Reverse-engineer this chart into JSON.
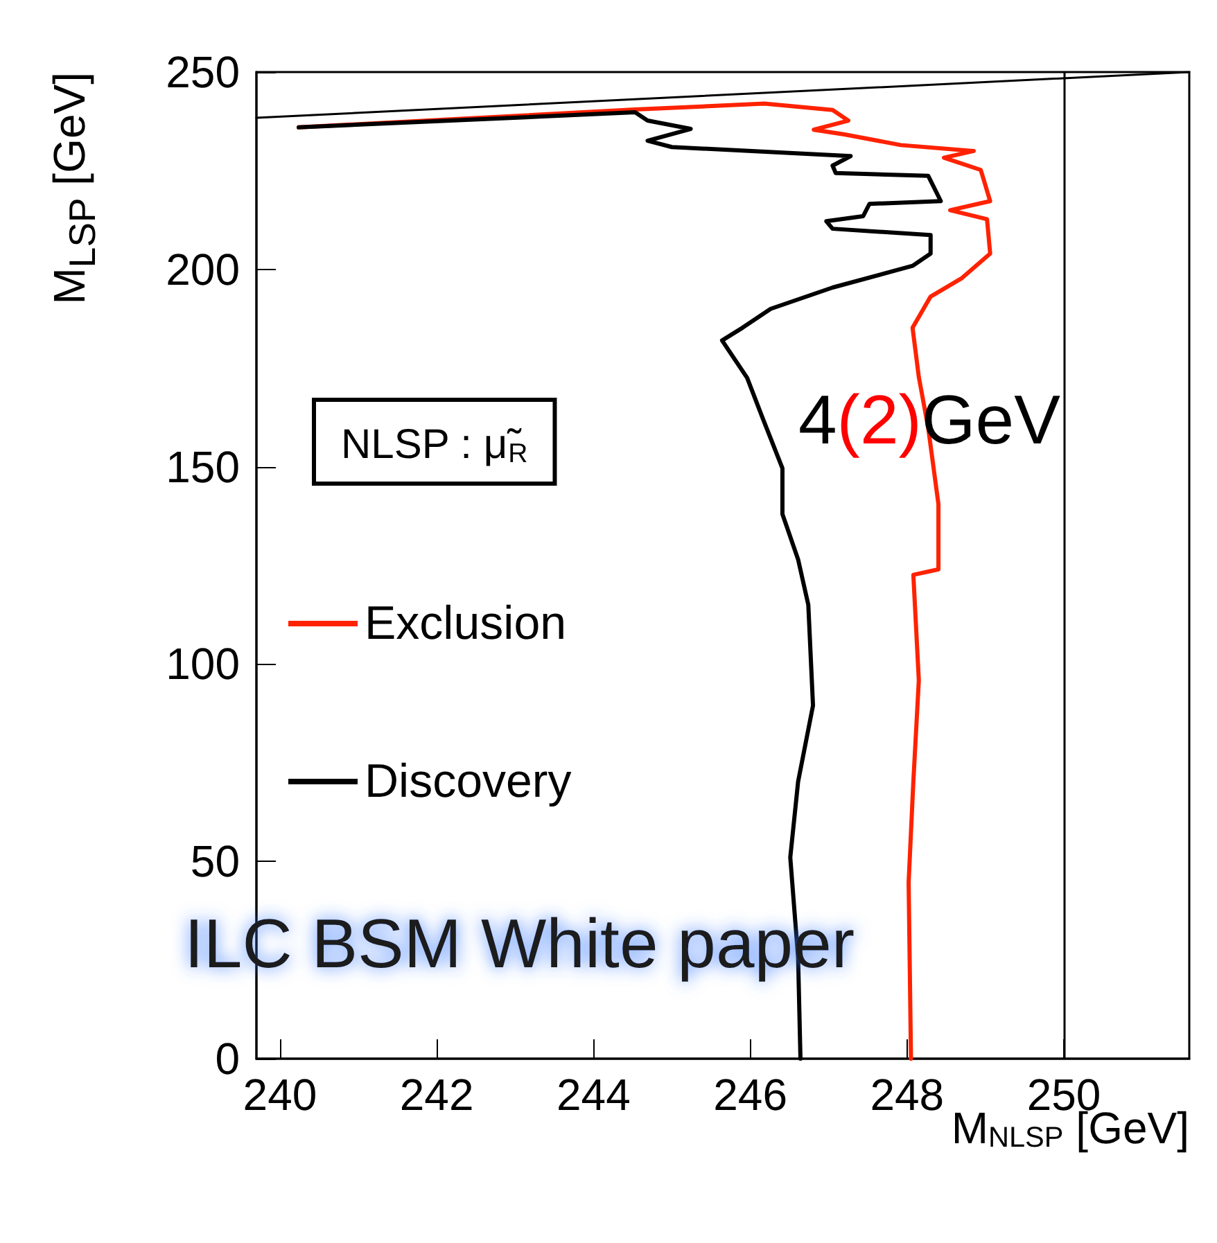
{
  "chart_data": {
    "type": "line",
    "xlabel": "M$_{NLSP}$ [GeV]",
    "ylabel": "M$_{LSP}$ [GeV]",
    "xlim": [
      239.7,
      251.6
    ],
    "ylim": [
      0,
      250
    ],
    "xticks": [
      240,
      242,
      244,
      246,
      248,
      250
    ],
    "yticks": [
      0,
      50,
      100,
      150,
      200,
      250
    ],
    "grid": false,
    "legend": "left",
    "marker": "none",
    "line_style": "solid",
    "annotations": [
      "NLSP : μ̃$_{R}$",
      "4(2)GeV",
      "ILC BSM White paper"
    ],
    "ref_lines": [
      {
        "axis": "x",
        "value": 250,
        "color": "#000000"
      }
    ],
    "series": [
      {
        "type": "line",
        "color": "#000000",
        "x": [
          239.7,
          251.6
        ],
        "values": [
          238.4,
          250
        ]
      },
      {
        "name": "Exclusion",
        "color": "#ff2200",
        "x": [
          240.24,
          244.53,
          246.18,
          247.05,
          247.25,
          246.81,
          247.2,
          247.92,
          248.85,
          248.47,
          248.94,
          249.06,
          248.55,
          249.02,
          249.06,
          248.7,
          248.3,
          248.07,
          248.15,
          248.27,
          248.4,
          248.4,
          248.08,
          248.15,
          248.08,
          248.02,
          248.05
        ],
        "values": [
          236,
          240.5,
          242,
          240.4,
          237.7,
          235.4,
          234.2,
          231.5,
          230,
          228.3,
          225.2,
          217.3,
          215,
          212.7,
          204,
          197.8,
          193.1,
          185.2,
          172.7,
          159.8,
          140.5,
          124,
          122.6,
          95.9,
          70.2,
          44.7,
          0
        ]
      },
      {
        "name": "Discovery",
        "color": "#000000",
        "x": [
          240.24,
          244.53,
          244.69,
          245.24,
          244.69,
          245.0,
          247.28,
          247.05,
          247.09,
          248.27,
          248.43,
          247.52,
          247.44,
          246.97,
          247.05,
          248.3,
          248.3,
          248.07,
          247.05,
          246.26,
          245.9,
          245.64,
          245.96,
          246.16,
          246.41,
          246.41,
          246.61,
          246.74,
          246.8,
          246.61,
          246.51,
          246.61,
          246.64
        ],
        "values": [
          236,
          239.8,
          237.7,
          235.6,
          232.6,
          231,
          228.7,
          226.3,
          224.4,
          223.7,
          217.3,
          216.6,
          213.5,
          212.2,
          210.3,
          208.7,
          204,
          200.9,
          195.4,
          190,
          185.2,
          182,
          172.5,
          162.2,
          149.6,
          138,
          126.5,
          115,
          89.5,
          70.2,
          51,
          25.6,
          0
        ]
      }
    ]
  }
}
